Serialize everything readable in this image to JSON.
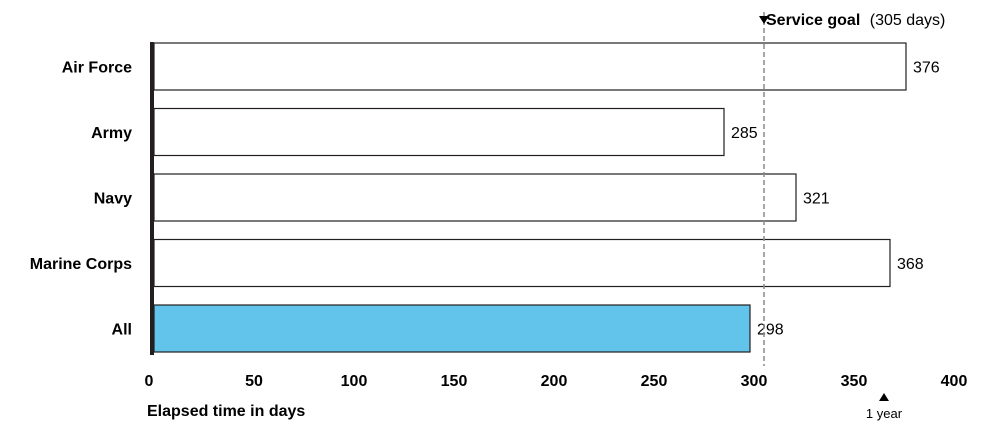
{
  "chart_data": {
    "type": "bar",
    "orientation": "horizontal",
    "categories": [
      "Air Force",
      "Army",
      "Navy",
      "Marine Corps",
      "All"
    ],
    "values": [
      376,
      285,
      321,
      368,
      298
    ],
    "value_labels": [
      "376",
      "285",
      "321",
      "368",
      "298"
    ],
    "xlabel": "Elapsed time in days",
    "xlim": [
      0,
      400
    ],
    "xticks": [
      "0",
      "50",
      "100",
      "150",
      "200",
      "250",
      "300",
      "350",
      "400"
    ],
    "grid": false,
    "colors": {
      "bar_fill": "#ffffff",
      "highlight_fill": "#62c4ea",
      "bar_stroke": "#231f20",
      "axis": "#231f20",
      "reference_line": "#8a8a8a"
    },
    "highlight_category": "All",
    "reference_line": {
      "value": 305,
      "label_bold": "Service goal",
      "label_rest": "(305 days)"
    },
    "marker": {
      "value": 365,
      "label": "1 year"
    }
  }
}
